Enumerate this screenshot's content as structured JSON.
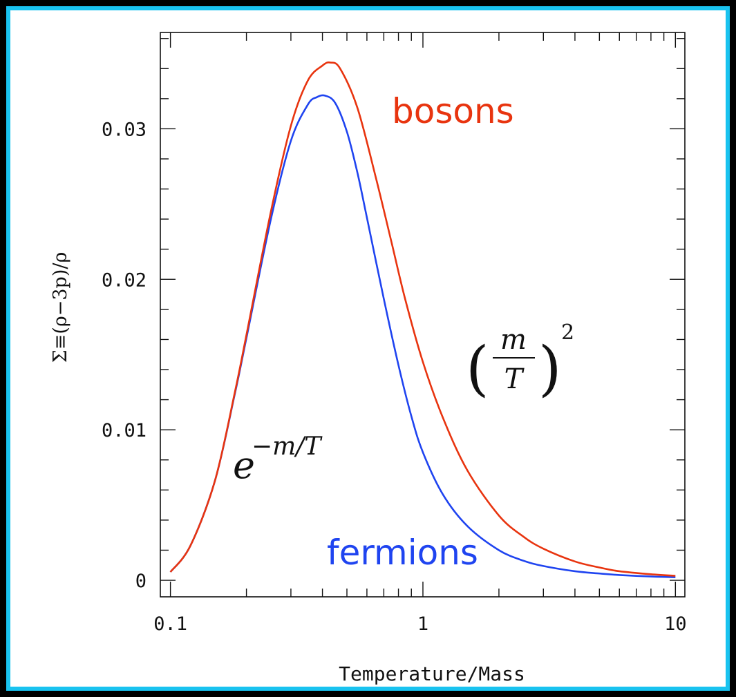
{
  "chart_data": {
    "type": "line",
    "title": "",
    "xlabel": "Temperature/Mass",
    "ylabel": "Σ≡(ρ−3p)/ρ",
    "xscale": "log",
    "xlim": [
      0.0912,
      10.9
    ],
    "ylim": [
      -0.0011,
      0.0364
    ],
    "x_ticks": [
      {
        "value": 0.1,
        "label": "0.1"
      },
      {
        "value": 1,
        "label": "1"
      },
      {
        "value": 10,
        "label": "10"
      }
    ],
    "y_ticks": [
      {
        "value": 0,
        "label": "0"
      },
      {
        "value": 0.01,
        "label": "0.01"
      },
      {
        "value": 0.02,
        "label": "0.02"
      },
      {
        "value": 0.03,
        "label": "0.03"
      }
    ],
    "grid": false,
    "series": [
      {
        "name": "bosons",
        "color": "#e8340f",
        "x": [
          0.1,
          0.12,
          0.15,
          0.18,
          0.2,
          0.25,
          0.3,
          0.35,
          0.4,
          0.43,
          0.47,
          0.55,
          0.65,
          0.75,
          0.85,
          1.0,
          1.2,
          1.5,
          2.0,
          2.5,
          3.0,
          4.0,
          5.0,
          6.0,
          8.0,
          10.0
        ],
        "y": [
          0.00055,
          0.0023,
          0.0066,
          0.0125,
          0.0163,
          0.0245,
          0.0302,
          0.0332,
          0.0342,
          0.0344,
          0.034,
          0.0314,
          0.0268,
          0.0225,
          0.0187,
          0.0145,
          0.0108,
          0.0073,
          0.0043,
          0.0029,
          0.0021,
          0.00125,
          0.00085,
          0.0006,
          0.0004,
          0.0003
        ]
      },
      {
        "name": "fermions",
        "color": "#1f44f0",
        "x": [
          0.1,
          0.12,
          0.15,
          0.18,
          0.2,
          0.25,
          0.3,
          0.35,
          0.38,
          0.41,
          0.45,
          0.5,
          0.55,
          0.6,
          0.7,
          0.8,
          0.9,
          1.0,
          1.2,
          1.5,
          2.0,
          2.5,
          3.0,
          4.0,
          5.0,
          6.0,
          8.0,
          10.0
        ],
        "y": [
          0.00055,
          0.0023,
          0.0066,
          0.0124,
          0.0161,
          0.024,
          0.0292,
          0.0316,
          0.0321,
          0.0322,
          0.0317,
          0.0298,
          0.0271,
          0.0241,
          0.0187,
          0.0143,
          0.0109,
          0.0085,
          0.0057,
          0.0036,
          0.002,
          0.0013,
          0.00095,
          0.0006,
          0.00045,
          0.00035,
          0.00025,
          0.0002
        ]
      }
    ],
    "annotations": [
      {
        "id": "exp",
        "base": "e",
        "exponent": "−m/T"
      },
      {
        "id": "power",
        "numerator": "m",
        "denominator": "T",
        "power": "2"
      }
    ]
  }
}
